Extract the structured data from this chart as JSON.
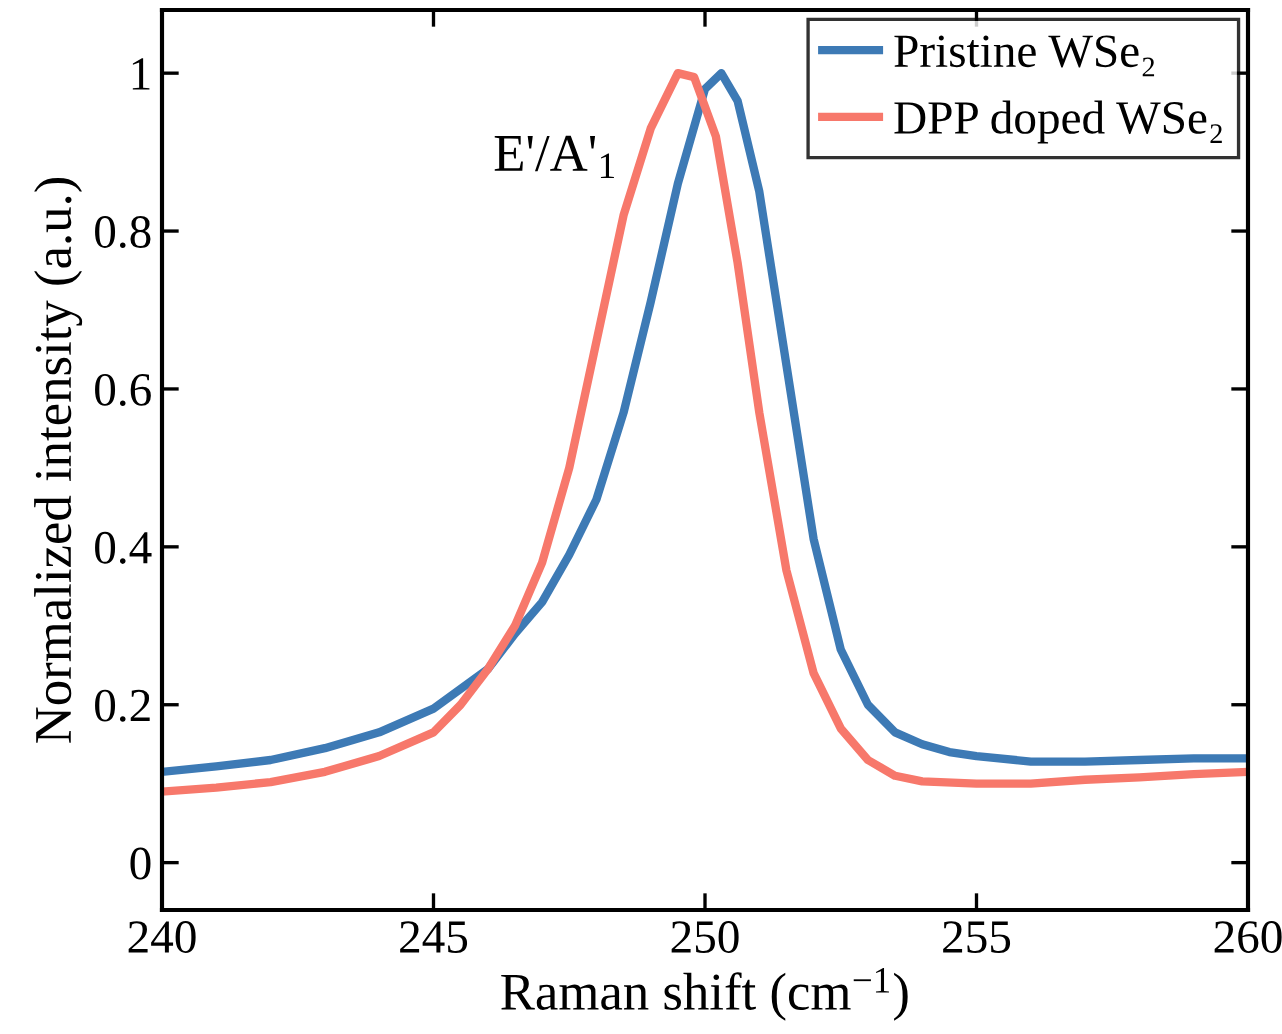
{
  "chart_data": {
    "type": "line",
    "xlabel": "Raman shift (cm$^{−1}$)",
    "ylabel": "Normalized intensity (a.u.)",
    "annotations": [
      "E'/A'$_{1}$"
    ],
    "xlim": [
      240,
      260
    ],
    "xticks": [
      240,
      245,
      250,
      255,
      260
    ],
    "ylim": [
      -0.06,
      1.08
    ],
    "yticks": [
      0,
      0.2,
      0.4,
      0.6,
      0.8,
      1
    ],
    "grid": false,
    "legend": "top right",
    "marker": "none",
    "line_style": "solid",
    "series": [
      {
        "name": "Pristine WSe₂",
        "color": "#3d7ab5",
        "x": [
          240,
          241,
          242,
          243,
          244,
          245,
          246,
          246.5,
          247,
          247.5,
          248,
          248.5,
          249,
          249.5,
          250,
          250.3,
          250.6,
          251,
          251.5,
          252,
          252.5,
          253,
          253.5,
          254,
          254.5,
          255,
          256,
          257,
          258,
          259,
          260
        ],
        "values": [
          0.115,
          0.122,
          0.13,
          0.145,
          0.165,
          0.195,
          0.245,
          0.29,
          0.33,
          0.39,
          0.46,
          0.57,
          0.71,
          0.86,
          0.98,
          1.0,
          0.965,
          0.85,
          0.63,
          0.41,
          0.27,
          0.2,
          0.165,
          0.15,
          0.14,
          0.135,
          0.128,
          0.128,
          0.13,
          0.132,
          0.132
        ]
      },
      {
        "name": "DPP doped WSe₂",
        "color": "#f7786b",
        "x": [
          240,
          241,
          242,
          243,
          244,
          245,
          245.5,
          246,
          246.5,
          247,
          247.5,
          248,
          248.5,
          249,
          249.5,
          249.8,
          250.2,
          250.6,
          251,
          251.5,
          252,
          252.5,
          253,
          253.5,
          254,
          255,
          256,
          257,
          258,
          259,
          260
        ],
        "values": [
          0.09,
          0.095,
          0.102,
          0.115,
          0.135,
          0.165,
          0.2,
          0.245,
          0.3,
          0.38,
          0.5,
          0.66,
          0.82,
          0.93,
          1.0,
          0.995,
          0.92,
          0.76,
          0.57,
          0.37,
          0.24,
          0.17,
          0.13,
          0.11,
          0.103,
          0.1,
          0.1,
          0.105,
          0.108,
          0.112,
          0.115
        ]
      }
    ]
  }
}
